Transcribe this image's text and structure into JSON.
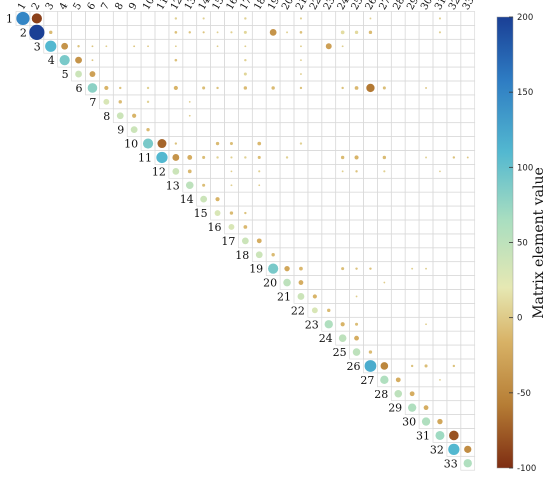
{
  "chart_data": {
    "type": "heatmap",
    "subtype": "upper-triangular bubble matrix",
    "n": 33,
    "row_labels": [
      "1",
      "2",
      "3",
      "4",
      "5",
      "6",
      "7",
      "8",
      "9",
      "10",
      "11",
      "12",
      "13",
      "14",
      "15",
      "16",
      "17",
      "18",
      "19",
      "20",
      "21",
      "22",
      "23",
      "24",
      "25",
      "26",
      "27",
      "28",
      "29",
      "30",
      "31",
      "32",
      "33"
    ],
    "col_labels": [
      "1",
      "2",
      "3",
      "4",
      "5",
      "6",
      "7",
      "8",
      "9",
      "10",
      "11",
      "12",
      "13",
      "14",
      "15",
      "16",
      "17",
      "18",
      "19",
      "20",
      "21",
      "22",
      "23",
      "24",
      "25",
      "26",
      "27",
      "28",
      "29",
      "30",
      "31",
      "32",
      "33"
    ],
    "colorbar": {
      "label": "Matrix element value",
      "min": -100,
      "max": 200,
      "ticks": [
        "200",
        "150",
        "100",
        "50",
        "0",
        "-50",
        "-100"
      ],
      "colors": [
        "#1a3f95",
        "#2e7cc3",
        "#53b8d0",
        "#a9dec0",
        "#e6e8b3",
        "#d8b266",
        "#b67d35",
        "#7e2d12"
      ]
    },
    "grid": "on",
    "cells": [
      [
        1,
        1,
        150
      ],
      [
        1,
        2,
        -90
      ],
      [
        1,
        12,
        5
      ],
      [
        1,
        14,
        4
      ],
      [
        1,
        17,
        5
      ],
      [
        1,
        21,
        4
      ],
      [
        1,
        26,
        3
      ],
      [
        1,
        31,
        4
      ],
      [
        2,
        2,
        200
      ],
      [
        2,
        3,
        -10
      ],
      [
        2,
        12,
        -6
      ],
      [
        2,
        13,
        -5
      ],
      [
        2,
        14,
        -4
      ],
      [
        2,
        15,
        3
      ],
      [
        2,
        16,
        4
      ],
      [
        2,
        17,
        8
      ],
      [
        2,
        19,
        -40
      ],
      [
        2,
        20,
        3
      ],
      [
        2,
        21,
        -6
      ],
      [
        2,
        24,
        12
      ],
      [
        2,
        25,
        10
      ],
      [
        2,
        26,
        -10
      ],
      [
        2,
        31,
        4
      ],
      [
        3,
        3,
        110
      ],
      [
        3,
        4,
        -40
      ],
      [
        3,
        5,
        -5
      ],
      [
        3,
        6,
        -3
      ],
      [
        3,
        7,
        2
      ],
      [
        3,
        9,
        -3
      ],
      [
        3,
        10,
        -2
      ],
      [
        3,
        12,
        2
      ],
      [
        3,
        15,
        2
      ],
      [
        3,
        17,
        3
      ],
      [
        3,
        21,
        3
      ],
      [
        3,
        23,
        -30
      ],
      [
        3,
        24,
        3
      ],
      [
        4,
        4,
        90
      ],
      [
        4,
        5,
        -40
      ],
      [
        4,
        6,
        -3
      ],
      [
        4,
        12,
        -6
      ],
      [
        4,
        17,
        5
      ],
      [
        4,
        21,
        2
      ],
      [
        5,
        5,
        40
      ],
      [
        5,
        6,
        -30
      ],
      [
        5,
        17,
        8
      ],
      [
        5,
        21,
        3
      ],
      [
        6,
        6,
        80
      ],
      [
        6,
        7,
        -15
      ],
      [
        6,
        8,
        -5
      ],
      [
        6,
        10,
        5
      ],
      [
        6,
        12,
        -15
      ],
      [
        6,
        14,
        -8
      ],
      [
        6,
        15,
        -5
      ],
      [
        6,
        17,
        -10
      ],
      [
        6,
        19,
        -10
      ],
      [
        6,
        21,
        -5
      ],
      [
        6,
        24,
        -5
      ],
      [
        6,
        25,
        -12
      ],
      [
        6,
        26,
        -60
      ],
      [
        6,
        27,
        -8
      ],
      [
        6,
        30,
        -3
      ],
      [
        7,
        7,
        30
      ],
      [
        7,
        8,
        -10
      ],
      [
        7,
        10,
        5
      ],
      [
        7,
        13,
        2
      ],
      [
        8,
        8,
        40
      ],
      [
        8,
        9,
        -15
      ],
      [
        8,
        13,
        2
      ],
      [
        9,
        9,
        40
      ],
      [
        9,
        10,
        -10
      ],
      [
        10,
        10,
        90
      ],
      [
        10,
        11,
        -70
      ],
      [
        10,
        12,
        -5
      ],
      [
        10,
        15,
        -10
      ],
      [
        10,
        16,
        -8
      ],
      [
        10,
        18,
        -12
      ],
      [
        10,
        21,
        5
      ],
      [
        11,
        11,
        110
      ],
      [
        11,
        12,
        -40
      ],
      [
        11,
        13,
        -20
      ],
      [
        11,
        14,
        -8
      ],
      [
        11,
        15,
        5
      ],
      [
        11,
        16,
        4
      ],
      [
        11,
        17,
        5
      ],
      [
        11,
        18,
        -8
      ],
      [
        11,
        20,
        5
      ],
      [
        11,
        24,
        -10
      ],
      [
        11,
        25,
        -15
      ],
      [
        11,
        27,
        -10
      ],
      [
        11,
        30,
        3
      ],
      [
        11,
        32,
        -5
      ],
      [
        11,
        33,
        -3
      ],
      [
        12,
        12,
        40
      ],
      [
        12,
        13,
        -12
      ],
      [
        12,
        16,
        2
      ],
      [
        12,
        18,
        4
      ],
      [
        12,
        24,
        3
      ],
      [
        12,
        25,
        -5
      ],
      [
        12,
        27,
        4
      ],
      [
        12,
        31,
        2
      ],
      [
        13,
        13,
        50
      ],
      [
        13,
        14,
        -8
      ],
      [
        13,
        16,
        3
      ],
      [
        13,
        18,
        2
      ],
      [
        14,
        14,
        40
      ],
      [
        14,
        15,
        -15
      ],
      [
        15,
        15,
        30
      ],
      [
        15,
        16,
        -10
      ],
      [
        15,
        17,
        -5
      ],
      [
        16,
        16,
        30
      ],
      [
        16,
        17,
        -12
      ],
      [
        17,
        17,
        40
      ],
      [
        17,
        18,
        -20
      ],
      [
        18,
        18,
        40
      ],
      [
        18,
        19,
        -10
      ],
      [
        19,
        19,
        90
      ],
      [
        19,
        20,
        -25
      ],
      [
        19,
        21,
        -12
      ],
      [
        19,
        24,
        -8
      ],
      [
        19,
        25,
        -5
      ],
      [
        19,
        26,
        -5
      ],
      [
        19,
        29,
        3
      ],
      [
        19,
        30,
        3
      ],
      [
        20,
        20,
        50
      ],
      [
        20,
        21,
        -20
      ],
      [
        20,
        27,
        2
      ],
      [
        21,
        21,
        40
      ],
      [
        21,
        22,
        -15
      ],
      [
        21,
        25,
        2
      ],
      [
        22,
        22,
        30
      ],
      [
        22,
        23,
        -10
      ],
      [
        23,
        23,
        60
      ],
      [
        23,
        24,
        -15
      ],
      [
        23,
        25,
        -8
      ],
      [
        23,
        30,
        2
      ],
      [
        24,
        24,
        50
      ],
      [
        24,
        25,
        -20
      ],
      [
        25,
        25,
        50
      ],
      [
        25,
        26,
        -10
      ],
      [
        26,
        26,
        120
      ],
      [
        26,
        27,
        -50
      ],
      [
        26,
        29,
        -5
      ],
      [
        26,
        30,
        -8
      ],
      [
        26,
        32,
        -5
      ],
      [
        27,
        27,
        60
      ],
      [
        27,
        28,
        -20
      ],
      [
        27,
        31,
        2
      ],
      [
        28,
        28,
        50
      ],
      [
        28,
        29,
        -20
      ],
      [
        29,
        29,
        60
      ],
      [
        29,
        30,
        -20
      ],
      [
        30,
        30,
        60
      ],
      [
        30,
        31,
        -25
      ],
      [
        31,
        31,
        70
      ],
      [
        31,
        32,
        -80
      ],
      [
        32,
        32,
        110
      ],
      [
        32,
        33,
        -45
      ],
      [
        33,
        33,
        60
      ]
    ]
  }
}
